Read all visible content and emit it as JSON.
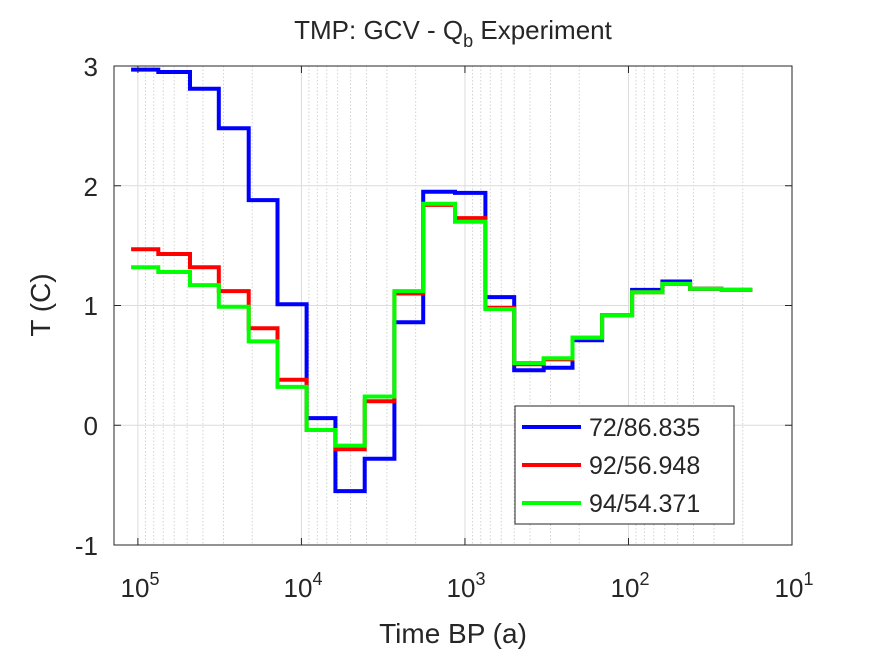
{
  "chart_data": {
    "type": "line",
    "title_main": "TMP: GCV - Q",
    "title_sub": "b",
    "title_tail": " Experiment",
    "xlabel": "Time BP (a)",
    "ylabel": "T (C)",
    "x_scale": "log",
    "x_reversed": true,
    "xlim": [
      140000,
      10
    ],
    "ylim": [
      -1,
      3
    ],
    "x_ticks": [
      {
        "value": 100000,
        "base": "10",
        "exp": "5"
      },
      {
        "value": 10000,
        "base": "10",
        "exp": "4"
      },
      {
        "value": 1000,
        "base": "10",
        "exp": "3"
      },
      {
        "value": 100,
        "base": "10",
        "exp": "2"
      },
      {
        "value": 10,
        "base": "10",
        "exp": "1"
      }
    ],
    "y_ticks": [
      {
        "value": 3,
        "label": "3"
      },
      {
        "value": 2,
        "label": "2"
      },
      {
        "value": 1,
        "label": "1"
      },
      {
        "value": 0,
        "label": "0"
      },
      {
        "value": -1,
        "label": "-1"
      }
    ],
    "grid": true,
    "legend_position": "bottom-right",
    "step": true,
    "edges": [
      110000,
      75000,
      48000,
      32000,
      21000,
      14000,
      9300,
      6200,
      4100,
      2700,
      1800,
      1150,
      750,
      500,
      330,
      220,
      145,
      95,
      62,
      42,
      27,
      17.5
    ],
    "series": [
      {
        "name": "72/86.835",
        "color": "#0000ff",
        "values": [
          2.97,
          2.95,
          2.81,
          2.48,
          1.88,
          1.01,
          0.06,
          -0.55,
          -0.28,
          0.86,
          1.95,
          1.94,
          1.07,
          0.46,
          0.48,
          0.71,
          0.92,
          1.13,
          1.2,
          1.14,
          1.13
        ]
      },
      {
        "name": "92/56.948",
        "color": "#ff0000",
        "values": [
          1.47,
          1.43,
          1.32,
          1.12,
          0.81,
          0.38,
          -0.04,
          -0.2,
          0.2,
          1.1,
          1.84,
          1.73,
          0.98,
          0.51,
          0.55,
          0.73,
          0.92,
          1.11,
          1.18,
          1.14,
          1.13
        ]
      },
      {
        "name": "94/54.371",
        "color": "#00ff00",
        "values": [
          1.32,
          1.28,
          1.17,
          0.99,
          0.7,
          0.32,
          -0.04,
          -0.17,
          0.24,
          1.12,
          1.85,
          1.7,
          0.97,
          0.52,
          0.56,
          0.73,
          0.92,
          1.11,
          1.18,
          1.14,
          1.13
        ]
      }
    ]
  }
}
